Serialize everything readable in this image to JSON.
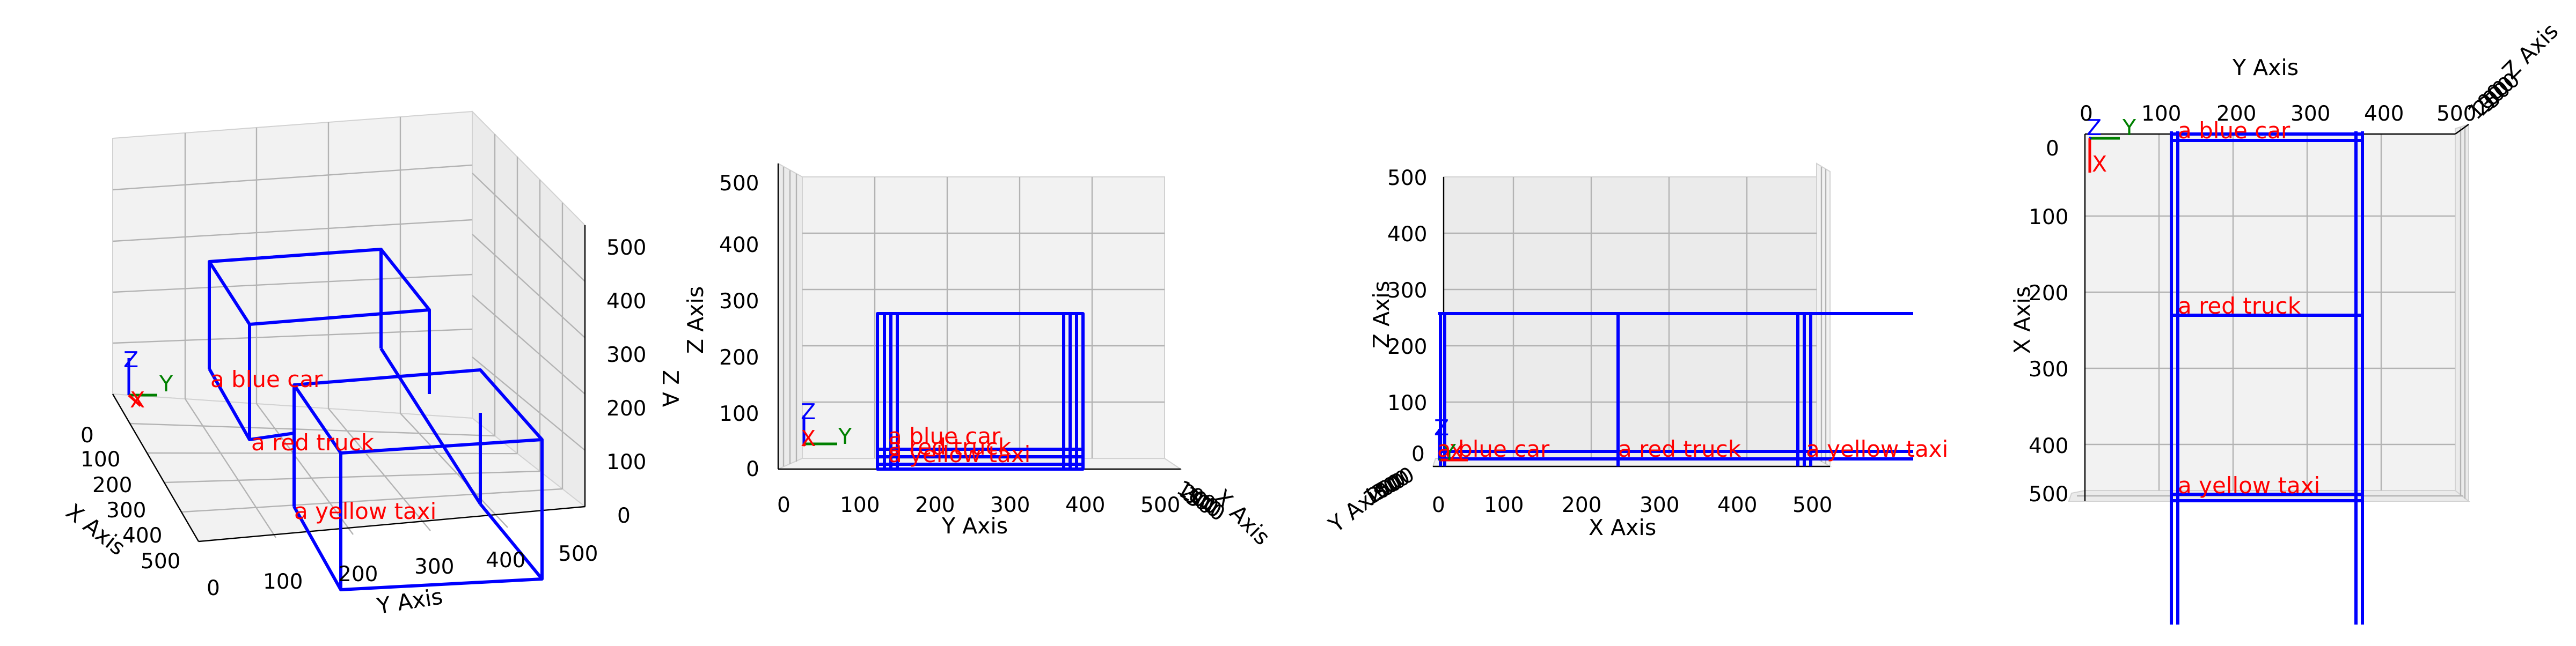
{
  "axes": {
    "x": "X Axis",
    "y": "Y Axis",
    "z": "Z Axis",
    "z_partial": "Z A"
  },
  "frame_letters": {
    "x": "X",
    "y": "Y",
    "z": "Z"
  },
  "ticks": [
    "0",
    "100",
    "200",
    "300",
    "400",
    "500"
  ],
  "objects": [
    {
      "label": "a blue car"
    },
    {
      "label": "a red truck"
    },
    {
      "label": "a yellow taxi"
    }
  ],
  "scene": {
    "units_range": [
      0,
      500
    ],
    "box_color": "#0000ff",
    "label_color": "#ff0000",
    "frame_colors": {
      "x": "#ff0000",
      "y": "#008000",
      "z": "#0000ff"
    }
  }
}
